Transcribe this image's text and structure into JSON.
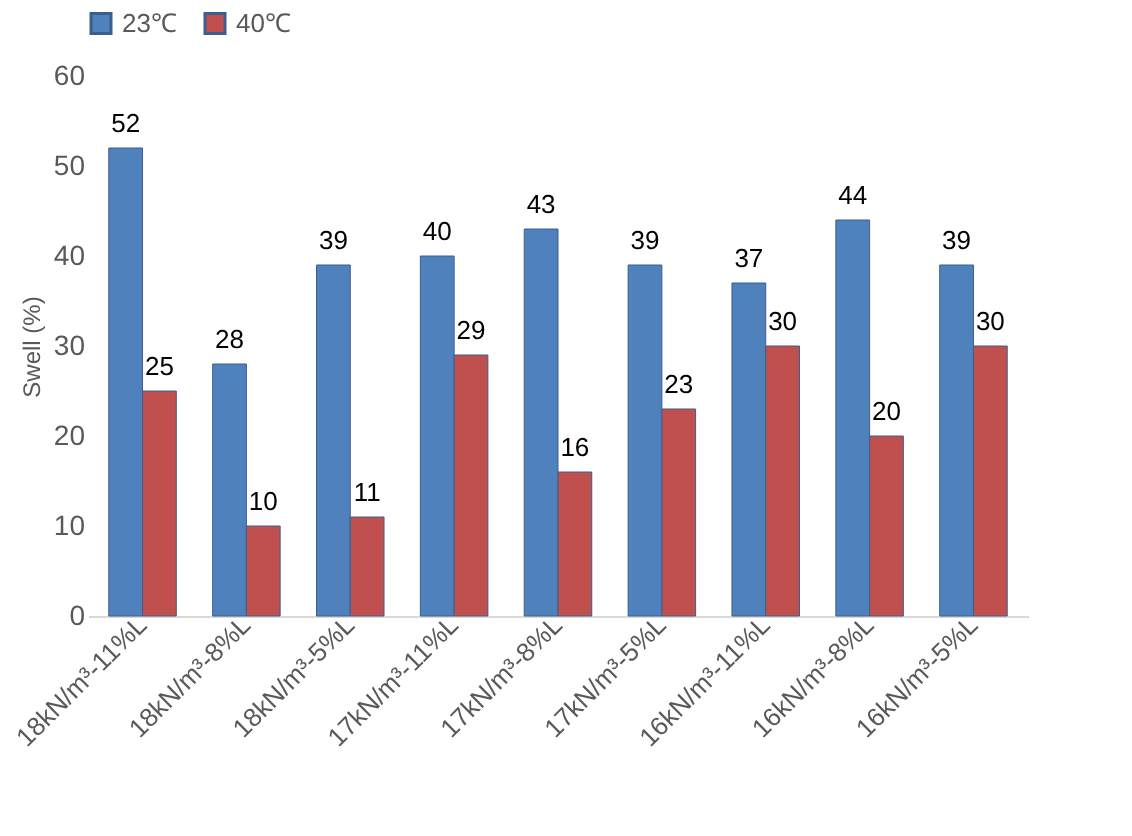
{
  "chart_data": {
    "type": "bar",
    "ylabel": "Swell (%)",
    "categories": [
      "18kN/m³-11%L",
      "18kN/m³-8%L",
      "18kN/m³-5%L",
      "17kN/m³-11%L",
      "17kN/m³-8%L",
      "17kN/m³-5%L",
      "16kN/m³-11%L",
      "16kN/m³-8%L",
      "16kN/m³-5%L"
    ],
    "series": [
      {
        "name": "23℃",
        "color": "#4f81bd",
        "values": [
          52,
          28,
          39,
          40,
          43,
          39,
          37,
          44,
          39
        ]
      },
      {
        "name": "40℃",
        "color": "#c0504d",
        "values": [
          25,
          10,
          11,
          29,
          16,
          23,
          30,
          20,
          30
        ]
      }
    ],
    "ylim": [
      0,
      60
    ],
    "yticks": [
      0,
      10,
      20,
      30,
      40,
      50,
      60
    ],
    "grid": false,
    "legend": "top",
    "data_labels": true
  }
}
